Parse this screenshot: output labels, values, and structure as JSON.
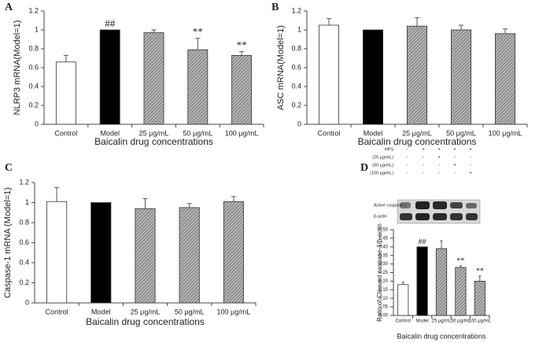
{
  "chart_data": [
    {
      "type": "bar",
      "panel_label": "A",
      "ylabel": "NLRP3 mRNA(Model=1)",
      "xlabel": "Baicalin drug concentrations",
      "categories": [
        "Control",
        "Model",
        "25 μg/mL",
        "50 μg/mL",
        "100 μg/mL"
      ],
      "values": [
        0.66,
        1.0,
        0.97,
        0.79,
        0.73
      ],
      "errors": [
        0.07,
        0.0,
        0.03,
        0.12,
        0.04
      ],
      "fills": [
        "#ffffff",
        "#000000",
        "#9a9a9a",
        "#9a9a9a",
        "#9a9a9a"
      ],
      "hatched": [
        false,
        false,
        true,
        true,
        true
      ],
      "annotations": [
        null,
        "##",
        null,
        "**",
        "**"
      ],
      "ylim": [
        0,
        1.2
      ],
      "yticks": [
        0,
        0.2,
        0.4,
        0.6,
        0.8,
        1,
        1.2
      ]
    },
    {
      "type": "bar",
      "panel_label": "B",
      "ylabel": "ASC mRNA(Model=1)",
      "xlabel": "Baicalin drug concentrations",
      "categories": [
        "Control",
        "Model",
        "25 μg/mL",
        "50 μg/mL",
        "100 μg/mL"
      ],
      "values": [
        1.05,
        1.0,
        1.04,
        1.0,
        0.96
      ],
      "errors": [
        0.07,
        0.0,
        0.09,
        0.05,
        0.05
      ],
      "fills": [
        "#ffffff",
        "#000000",
        "#9a9a9a",
        "#9a9a9a",
        "#9a9a9a"
      ],
      "hatched": [
        false,
        false,
        true,
        true,
        true
      ],
      "annotations": [
        null,
        null,
        null,
        null,
        null
      ],
      "ylim": [
        0,
        1.2
      ],
      "yticks": [
        0,
        0.2,
        0.4,
        0.6,
        0.8,
        1,
        1.2
      ]
    },
    {
      "type": "bar",
      "panel_label": "C",
      "ylabel": "Caspase-1 mRNA (Model=1)",
      "xlabel": "Baicalin drug concentrations",
      "categories": [
        "Control",
        "Model",
        "25 μg/mL",
        "50 μg/mL",
        "100 μg/mL"
      ],
      "values": [
        1.01,
        1.0,
        0.94,
        0.95,
        1.01
      ],
      "errors": [
        0.14,
        0.0,
        0.1,
        0.04,
        0.05
      ],
      "fills": [
        "#ffffff",
        "#000000",
        "#9a9a9a",
        "#9a9a9a",
        "#9a9a9a"
      ],
      "hatched": [
        false,
        false,
        true,
        true,
        true
      ],
      "annotations": [
        null,
        null,
        null,
        null,
        null
      ],
      "ylim": [
        0,
        1.2
      ],
      "yticks": [
        0,
        0.2,
        0.4,
        0.6,
        0.8,
        1,
        1.2
      ]
    },
    {
      "type": "bar",
      "panel_label": "D",
      "ylabel": "Ratio of Cleaved caspase-1/β-actin",
      "xlabel": "Baicalin drug concentrations",
      "categories": [
        "Control",
        "Model",
        "25 μg/mL",
        "50 μg/mL",
        "100 μg/mL"
      ],
      "values": [
        0.18,
        0.4,
        0.39,
        0.28,
        0.2
      ],
      "errors": [
        0.015,
        0.0,
        0.045,
        0.01,
        0.03
      ],
      "fills": [
        "#ffffff",
        "#000000",
        "#9a9a9a",
        "#9a9a9a",
        "#9a9a9a"
      ],
      "hatched": [
        false,
        false,
        true,
        true,
        true
      ],
      "annotations": [
        null,
        "##",
        null,
        "**",
        "**"
      ],
      "ylim": [
        0,
        0.5
      ],
      "yticks": [
        {
          "value": 0,
          "label": "0.00"
        },
        {
          "value": 0.05,
          "label": "0.05"
        },
        {
          "value": 0.1,
          "label": "0.10"
        },
        {
          "value": 0.15,
          "label": "0.15"
        },
        {
          "value": 0.2,
          "label": "0.20"
        },
        {
          "value": 0.25,
          "label": "0.25"
        },
        {
          "value": 0.3,
          "label": "0.30"
        },
        {
          "value": 0.35,
          "label": "0.35"
        },
        {
          "value": 0.4,
          "label": "0.40"
        },
        {
          "value": 0.45,
          "label": "0.45"
        },
        {
          "value": 0.5,
          "label": "0.50"
        }
      ],
      "blot": {
        "treatments": [
          {
            "name": "HPS",
            "signs": [
              "-",
              "+",
              "+",
              "+",
              "+"
            ]
          },
          {
            "name": "(25 μg/mL)",
            "signs": [
              "-",
              "-",
              "+",
              "-",
              "-"
            ]
          },
          {
            "name": "(50 μg/mL)",
            "signs": [
              "-",
              "-",
              "-",
              "+",
              "-"
            ]
          },
          {
            "name": "(100 μg/mL)",
            "signs": [
              "-",
              "-",
              "-",
              "-",
              "+"
            ]
          }
        ],
        "bands": [
          "Active caspase-1",
          "β-actin"
        ]
      }
    }
  ]
}
